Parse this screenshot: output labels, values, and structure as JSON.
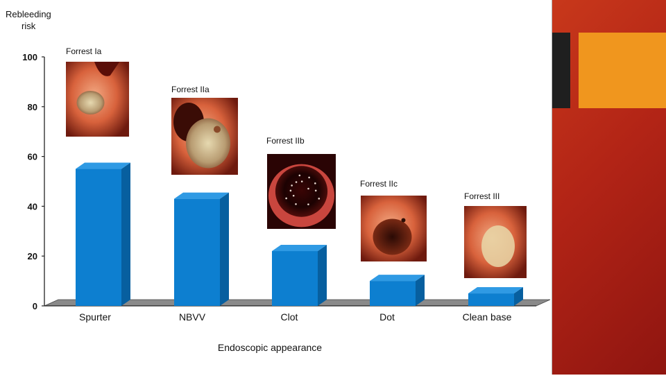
{
  "chart_data": {
    "type": "bar",
    "ylabel_line1": "Rebleeding",
    "ylabel_line2": "risk",
    "xlabel": "Endoscopic appearance",
    "ylim": [
      0,
      100
    ],
    "yticks": [
      "0",
      "20",
      "40",
      "60",
      "80",
      "100"
    ],
    "categories": [
      "Spurter",
      "NBVV",
      "Clot",
      "Dot",
      "Clean base"
    ],
    "values": [
      55,
      43,
      22,
      10,
      5
    ],
    "image_labels": [
      "Forrest Ia",
      "Forrest IIa",
      "Forrest IIb",
      "Forrest IIc",
      "Forrest III"
    ],
    "bar_color": "#0d7fd0",
    "bar_side_color": "#075f9f",
    "bar_top_color": "#2f9ae4",
    "grid": false
  },
  "theme": {
    "panel_orange": "#f0961e",
    "panel_red": "#b22416"
  },
  "image_icons": [
    "endoscopy-spurter-image",
    "endoscopy-nbvv-image",
    "endoscopy-clot-image",
    "endoscopy-dot-image",
    "endoscopy-clean-base-image"
  ]
}
